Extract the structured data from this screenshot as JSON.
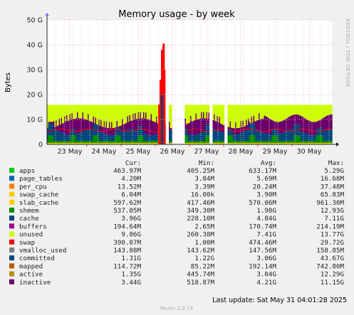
{
  "chart_data": {
    "type": "area",
    "title": "Memory usage - by week",
    "ylabel": "Bytes",
    "y_ticks": [
      "0",
      "10 G",
      "20 G",
      "30 G",
      "40 G",
      "50 G"
    ],
    "ylim_gb": [
      0,
      50
    ],
    "x_ticks": [
      "23 May",
      "24 May",
      "25 May",
      "26 May",
      "27 May",
      "28 May",
      "29 May",
      "30 May"
    ],
    "grid": true,
    "columns": [
      "Cur:",
      "Min:",
      "Avg:",
      "Max:"
    ],
    "series": [
      {
        "name": "apps",
        "color": "#00cc00",
        "cur": "463.97M",
        "min": "405.25M",
        "avg": "633.17M",
        "max": "5.29G"
      },
      {
        "name": "page_tables",
        "color": "#0066b3",
        "cur": "4.20M",
        "min": "3.84M",
        "avg": "5.69M",
        "max": "16.68M"
      },
      {
        "name": "per_cpu",
        "color": "#ff8000",
        "cur": "13.52M",
        "min": "3.39M",
        "avg": "20.24M",
        "max": "37.48M"
      },
      {
        "name": "swap_cache",
        "color": "#ffcc00",
        "cur": "6.04M",
        "min": "16.00k",
        "avg": "3.90M",
        "max": "65.83M"
      },
      {
        "name": "slab_cache",
        "color": "#ffcc00",
        "cur": "597.62M",
        "min": "417.46M",
        "avg": "570.06M",
        "max": "961.30M"
      },
      {
        "name": "shmem",
        "color": "#008f00",
        "cur": "537.05M",
        "min": "349.30M",
        "avg": "1.98G",
        "max": "12.93G"
      },
      {
        "name": "cache",
        "color": "#00487d",
        "cur": "3.96G",
        "min": "228.10M",
        "avg": "4.84G",
        "max": "7.11G"
      },
      {
        "name": "buffers",
        "color": "#990099",
        "cur": "194.64M",
        "min": "2.65M",
        "avg": "170.74M",
        "max": "214.19M"
      },
      {
        "name": "unused",
        "color": "#ccff00",
        "cur": "9.86G",
        "min": "260.38M",
        "avg": "7.41G",
        "max": "13.77G"
      },
      {
        "name": "swap",
        "color": "#ff0000",
        "cur": "390.07M",
        "min": "1.00M",
        "avg": "474.46M",
        "max": "29.72G"
      },
      {
        "name": "vmalloc_used",
        "color": "#808080",
        "cur": "143.88M",
        "min": "143.62M",
        "avg": "147.56M",
        "max": "158.85M"
      },
      {
        "name": "committed",
        "color": "#00487d",
        "cur": "1.31G",
        "min": "1.22G",
        "avg": "3.06G",
        "max": "43.67G"
      },
      {
        "name": "mapped",
        "color": "#b35a00",
        "cur": "114.72M",
        "min": "85.22M",
        "avg": "192.14M",
        "max": "742.80M"
      },
      {
        "name": "active",
        "color": "#b38f00",
        "cur": "1.35G",
        "min": "445.74M",
        "avg": "3.04G",
        "max": "12.29G"
      },
      {
        "name": "inactive",
        "color": "#6b006b",
        "cur": "3.44G",
        "min": "518.87M",
        "avg": "4.21G",
        "max": "11.15G"
      }
    ]
  },
  "last_update": "Last update: Sat May 31 04:01:28 2025",
  "side_text": "RRDTOOL / TOBI OETIKER",
  "footer": "Munin 2.0.73"
}
